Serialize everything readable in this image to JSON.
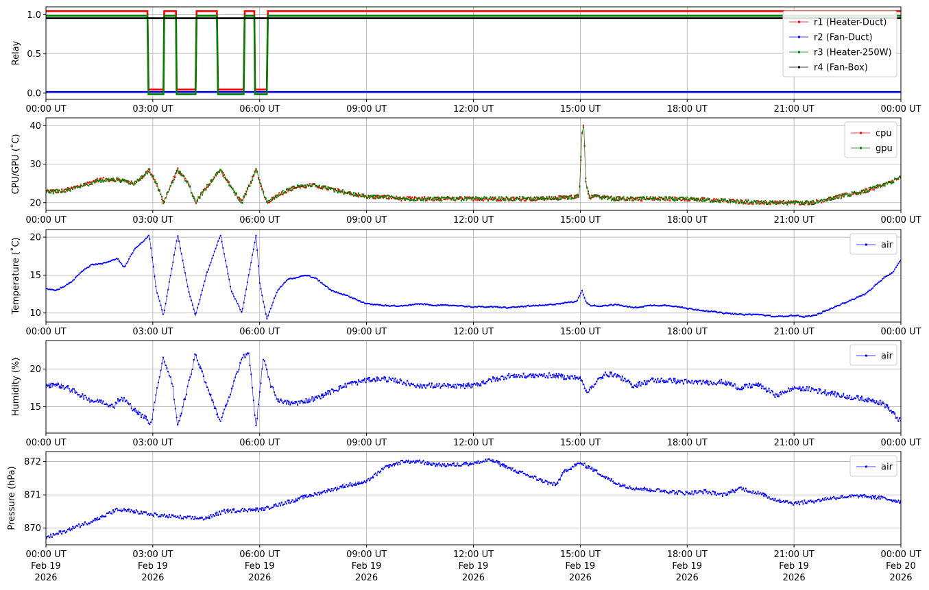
{
  "figure": {
    "x_ticks": [
      "00:00 UT",
      "03:00 UT",
      "06:00 UT",
      "09:00 UT",
      "12:00 UT",
      "15:00 UT",
      "18:00 UT",
      "21:00 UT",
      "00:00 UT"
    ],
    "x_dates": [
      "Feb 19",
      "Feb 19",
      "Feb 19",
      "Feb 19",
      "Feb 19",
      "Feb 19",
      "Feb 19",
      "Feb 19",
      "Feb 20"
    ],
    "x_years": [
      "2026",
      "2026",
      "2026",
      "2026",
      "2026",
      "2026",
      "2026",
      "2026",
      "2026"
    ]
  },
  "chart_data": [
    {
      "type": "line",
      "ylabel": "Relay",
      "ylim": [
        -0.08,
        1.1
      ],
      "yticks": [
        0.0,
        0.5,
        1.0
      ],
      "ytick_labels": [
        "0.0",
        "0.5",
        "1.0"
      ],
      "xlim_hours": [
        0,
        24
      ],
      "grid": true,
      "legend": "upper-right",
      "series": [
        {
          "name": "r1 (Heater-Duct)",
          "color": "#ff0000",
          "offset": 0.045,
          "x": [
            0,
            2.85,
            2.88,
            3.3,
            3.32,
            3.65,
            3.67,
            4.2,
            4.23,
            4.8,
            4.83,
            5.55,
            5.58,
            5.85,
            5.87,
            6.2,
            6.23,
            24
          ],
          "y": [
            1,
            1,
            0,
            0,
            1,
            1,
            0,
            0,
            1,
            1,
            0,
            0,
            1,
            1,
            0,
            0,
            1,
            1
          ]
        },
        {
          "name": "r2 (Fan-Duct)",
          "color": "#0000ff",
          "offset": 0.015,
          "x": [
            0,
            24
          ],
          "y": [
            0,
            0
          ]
        },
        {
          "name": "r3 (Heater-250W)",
          "color": "#008000",
          "offset": -0.015,
          "x": [
            0,
            2.85,
            2.88,
            3.3,
            3.32,
            3.65,
            3.67,
            4.2,
            4.23,
            4.8,
            4.83,
            5.55,
            5.58,
            5.85,
            5.87,
            6.2,
            6.23,
            24
          ],
          "y": [
            1,
            1,
            0,
            0,
            1,
            1,
            0,
            0,
            1,
            1,
            0,
            0,
            1,
            1,
            0,
            0,
            1,
            1
          ]
        },
        {
          "name": "r4 (Fan-Box)",
          "color": "#000000",
          "offset": -0.045,
          "x": [
            0,
            24
          ],
          "y": [
            1,
            1
          ]
        }
      ]
    },
    {
      "type": "line",
      "ylabel": "CPU/GPU (˚C)",
      "ylim": [
        18,
        42
      ],
      "yticks": [
        20,
        30,
        40
      ],
      "ytick_labels": [
        "20",
        "30",
        "40"
      ],
      "xlim_hours": [
        0,
        24
      ],
      "grid": true,
      "legend": "upper-right",
      "series": [
        {
          "name": "cpu",
          "color": "#ff0000",
          "x": [
            0,
            0.5,
            1.0,
            1.5,
            2.0,
            2.5,
            2.9,
            3.1,
            3.3,
            3.7,
            4.0,
            4.2,
            4.5,
            4.9,
            5.2,
            5.5,
            5.9,
            6.2,
            6.5,
            7.0,
            7.5,
            8.0,
            8.5,
            9.0,
            9.5,
            10.0,
            11.0,
            12.0,
            13.0,
            14.0,
            14.8,
            14.97,
            15.05,
            15.1,
            15.15,
            15.25,
            15.5,
            16.0,
            17.0,
            18.0,
            19.0,
            20.0,
            21.0,
            21.5,
            22.0,
            22.5,
            23.0,
            23.5,
            24.0
          ],
          "y": [
            23,
            23,
            24.5,
            26,
            26,
            25,
            28.5,
            25,
            20,
            28.5,
            25,
            20,
            24,
            28.5,
            24,
            20,
            28.5,
            20,
            22,
            24,
            24.5,
            23.5,
            22.5,
            21.5,
            21.5,
            21,
            21,
            21,
            21,
            21,
            21.5,
            22,
            38,
            40.5,
            26,
            21.5,
            21.5,
            21,
            21,
            21,
            20.5,
            20,
            20,
            20,
            21,
            22,
            23,
            24.5,
            26.5
          ]
        },
        {
          "name": "gpu",
          "color": "#008000",
          "x": [
            0,
            0.5,
            1.0,
            1.5,
            2.0,
            2.5,
            2.9,
            3.1,
            3.3,
            3.7,
            4.0,
            4.2,
            4.5,
            4.9,
            5.2,
            5.5,
            5.9,
            6.2,
            6.5,
            7.0,
            7.5,
            8.0,
            8.5,
            9.0,
            9.5,
            10.0,
            11.0,
            12.0,
            13.0,
            14.0,
            14.8,
            14.97,
            15.05,
            15.1,
            15.15,
            15.25,
            15.5,
            16.0,
            17.0,
            18.0,
            19.0,
            20.0,
            21.0,
            21.5,
            22.0,
            22.5,
            23.0,
            23.5,
            24.0
          ],
          "y": [
            22.8,
            23,
            24.3,
            25.8,
            26,
            25,
            28.5,
            25,
            20,
            28.5,
            25,
            20,
            24,
            28.5,
            24,
            20,
            28.5,
            20,
            22,
            24,
            24.5,
            23.5,
            22.5,
            21.5,
            21.5,
            21,
            21,
            21,
            21,
            21,
            21.5,
            22,
            38,
            40.5,
            26,
            21.5,
            21.5,
            21,
            21,
            21,
            20.5,
            20,
            20,
            20,
            21,
            22,
            23,
            24.5,
            26.5
          ]
        }
      ]
    },
    {
      "type": "line",
      "ylabel": "Temperature (˚C)",
      "ylim": [
        8.8,
        21.0
      ],
      "yticks": [
        10,
        15,
        20
      ],
      "ytick_labels": [
        "10",
        "15",
        "20"
      ],
      "xlim_hours": [
        0,
        24
      ],
      "grid": true,
      "legend": "upper-right",
      "series": [
        {
          "name": "air",
          "color": "#0000ff",
          "x": [
            0,
            0.3,
            0.7,
            1.0,
            1.3,
            1.6,
            2.0,
            2.2,
            2.5,
            2.75,
            2.9,
            3.1,
            3.3,
            3.7,
            4.0,
            4.2,
            4.5,
            4.9,
            5.2,
            5.5,
            5.9,
            6.0,
            6.2,
            6.5,
            6.8,
            7.0,
            7.3,
            7.6,
            8.0,
            8.5,
            9.0,
            9.5,
            10.0,
            10.5,
            11.0,
            11.5,
            12.0,
            12.5,
            13.0,
            13.5,
            14.0,
            14.5,
            14.9,
            15.05,
            15.15,
            15.3,
            15.5,
            16.0,
            16.5,
            17.0,
            17.5,
            18.0,
            18.5,
            19.0,
            19.5,
            20.0,
            20.5,
            21.0,
            21.3,
            21.6,
            22.0,
            22.5,
            23.0,
            23.5,
            23.8,
            24.0
          ],
          "y": [
            13.2,
            13,
            14,
            15.5,
            16.4,
            16.5,
            17.2,
            16,
            18.5,
            19.5,
            20.3,
            13,
            9.7,
            20.3,
            13,
            9.7,
            15,
            20.3,
            13,
            10,
            20.3,
            14,
            9.2,
            13,
            14.5,
            14.6,
            15,
            14.5,
            13,
            12.2,
            11.2,
            11,
            10.9,
            11.2,
            11,
            11,
            10.8,
            10.8,
            10.7,
            10.9,
            11,
            11.3,
            11.5,
            13,
            11.5,
            11,
            10.9,
            11.1,
            10.7,
            11,
            11,
            10.6,
            10.3,
            10,
            9.8,
            9.8,
            9.5,
            9.7,
            9.5,
            9.7,
            10.5,
            11.5,
            12.5,
            14.5,
            15.5,
            17
          ]
        }
      ]
    },
    {
      "type": "line",
      "ylabel": "Humidity (%)",
      "ylim": [
        11.5,
        23.8
      ],
      "yticks": [
        15,
        20
      ],
      "ytick_labels": [
        "15",
        "20"
      ],
      "xlim_hours": [
        0,
        24
      ],
      "grid": true,
      "legend": "upper-right",
      "series": [
        {
          "name": "air",
          "color": "#0000ff",
          "x": [
            0,
            0.3,
            0.6,
            1.0,
            1.3,
            1.6,
            1.9,
            2.0,
            2.2,
            2.5,
            2.8,
            2.95,
            3.0,
            3.1,
            3.3,
            3.55,
            3.7,
            4.0,
            4.2,
            4.5,
            4.9,
            5.2,
            5.5,
            5.7,
            5.9,
            6.1,
            6.3,
            6.5,
            6.8,
            7.0,
            7.3,
            7.6,
            8.0,
            8.5,
            9.0,
            9.5,
            10.0,
            10.5,
            11.0,
            11.5,
            12.0,
            12.5,
            13.0,
            13.5,
            14.0,
            14.5,
            15.0,
            15.2,
            15.5,
            15.7,
            16.0,
            16.5,
            17.0,
            17.5,
            18.0,
            18.5,
            19.0,
            19.5,
            20.0,
            20.5,
            21.0,
            21.5,
            22.0,
            22.5,
            23.0,
            23.5,
            23.8,
            24.0
          ],
          "y": [
            17.8,
            18,
            17.5,
            16.5,
            15.8,
            15.7,
            15,
            15.8,
            16,
            14.5,
            13.5,
            12.8,
            14,
            17,
            21.5,
            18,
            12.3,
            18,
            22,
            18,
            13,
            17,
            21.5,
            22,
            12.3,
            21.5,
            18,
            16,
            15.5,
            15.5,
            15.8,
            16.2,
            17,
            18,
            18.5,
            18.7,
            18.3,
            17.8,
            17.8,
            17.7,
            17.8,
            18.6,
            19.1,
            19.1,
            19.2,
            19,
            18.8,
            17,
            18.5,
            19.3,
            19.2,
            17.8,
            18.5,
            18.5,
            18.3,
            18.2,
            18.3,
            17.5,
            18,
            16.5,
            17.5,
            17.3,
            16.8,
            16.3,
            16,
            15.5,
            14,
            13
          ]
        }
      ]
    },
    {
      "type": "line",
      "ylabel": "Pressure (hPa)",
      "ylim": [
        869.5,
        872.3
      ],
      "yticks": [
        870,
        871,
        872
      ],
      "ytick_labels": [
        "870",
        "871",
        "872"
      ],
      "xlim_hours": [
        0,
        24
      ],
      "grid": true,
      "legend": "upper-right",
      "series": [
        {
          "name": "air",
          "color": "#0000ff",
          "x": [
            0,
            0.5,
            1.0,
            1.5,
            2.0,
            2.5,
            3.0,
            3.5,
            4.0,
            4.5,
            5.0,
            5.5,
            6.0,
            6.5,
            7.0,
            7.5,
            8.0,
            8.5,
            9.0,
            9.5,
            10.0,
            10.5,
            11.0,
            11.5,
            12.0,
            12.5,
            13.0,
            13.5,
            14.0,
            14.3,
            14.6,
            15.0,
            15.3,
            15.6,
            16.0,
            16.5,
            17.0,
            17.5,
            18.0,
            18.5,
            19.0,
            19.5,
            20.0,
            20.5,
            21.0,
            21.5,
            22.0,
            22.5,
            23.0,
            23.5,
            24.0
          ],
          "y": [
            869.7,
            869.9,
            870.1,
            870.3,
            870.55,
            870.5,
            870.4,
            870.35,
            870.3,
            870.3,
            870.5,
            870.55,
            870.55,
            870.7,
            870.85,
            871.0,
            871.15,
            871.3,
            871.4,
            871.8,
            872.0,
            872.0,
            871.9,
            871.9,
            871.95,
            872.05,
            871.8,
            871.6,
            871.4,
            871.3,
            871.75,
            871.95,
            871.8,
            871.6,
            871.35,
            871.2,
            871.15,
            871.1,
            871.05,
            871.1,
            871.0,
            871.2,
            871.05,
            870.85,
            870.75,
            870.8,
            870.9,
            870.95,
            870.95,
            870.9,
            870.8
          ]
        }
      ]
    }
  ]
}
